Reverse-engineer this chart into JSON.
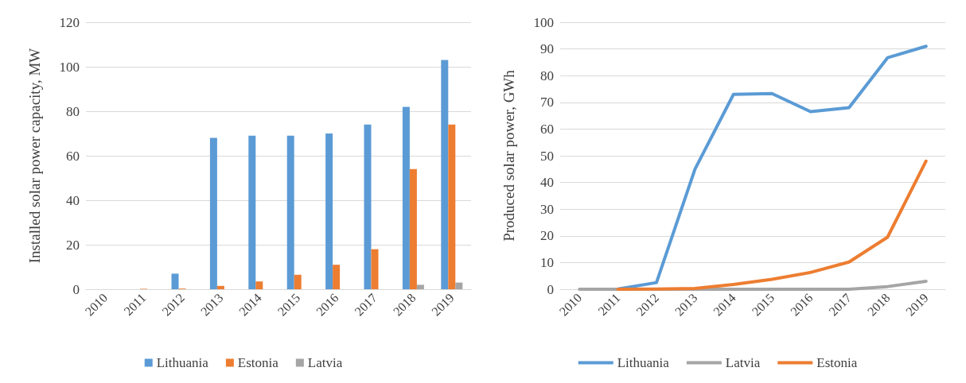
{
  "chart_data": [
    {
      "type": "bar",
      "ylabel": "Installed solar power capacity, MW",
      "categories": [
        "2010",
        "2011",
        "2012",
        "2013",
        "2014",
        "2015",
        "2016",
        "2017",
        "2018",
        "2019"
      ],
      "series": [
        {
          "name": "Lithuania",
          "color": "#5b9bd5",
          "values": [
            0,
            null,
            7,
            68,
            69,
            69,
            70,
            74,
            82,
            103
          ]
        },
        {
          "name": "Estonia",
          "color": "#ed7d31",
          "values": [
            0,
            0.2,
            0.3,
            1.5,
            3.5,
            6.5,
            11,
            18,
            54,
            74
          ]
        },
        {
          "name": "Latvia",
          "color": "#a5a5a5",
          "values": [
            0,
            0,
            0,
            0,
            0,
            0,
            0,
            0,
            2,
            3
          ]
        }
      ],
      "ylim": [
        0,
        120
      ],
      "yticks": [
        0,
        20,
        40,
        60,
        80,
        100,
        120
      ],
      "grid": "y",
      "legend": "bottom"
    },
    {
      "type": "line",
      "ylabel": "Produced solar power, GWh",
      "categories": [
        "2010",
        "2011",
        "2012",
        "2013",
        "2014",
        "2015",
        "2016",
        "2017",
        "2018",
        "2019"
      ],
      "series": [
        {
          "name": "Lithuania",
          "color": "#5b9bd5",
          "values": [
            null,
            0.1,
            2.5,
            45,
            73,
            73.3,
            66.5,
            68,
            86.7,
            91
          ]
        },
        {
          "name": "Latvia",
          "color": "#a5a5a5",
          "values": [
            0,
            0,
            0,
            0,
            0,
            0,
            0,
            0,
            1,
            3
          ]
        },
        {
          "name": "Estonia",
          "color": "#ed7d31",
          "values": [
            null,
            0,
            0.1,
            0.3,
            1.8,
            3.7,
            6.3,
            10.2,
            19.5,
            48
          ]
        }
      ],
      "ylim": [
        0,
        100
      ],
      "yticks": [
        0,
        10,
        20,
        30,
        40,
        50,
        60,
        70,
        80,
        90,
        100
      ],
      "grid": "y",
      "legend": "bottom",
      "marker": "none",
      "line_style": "solid"
    }
  ]
}
